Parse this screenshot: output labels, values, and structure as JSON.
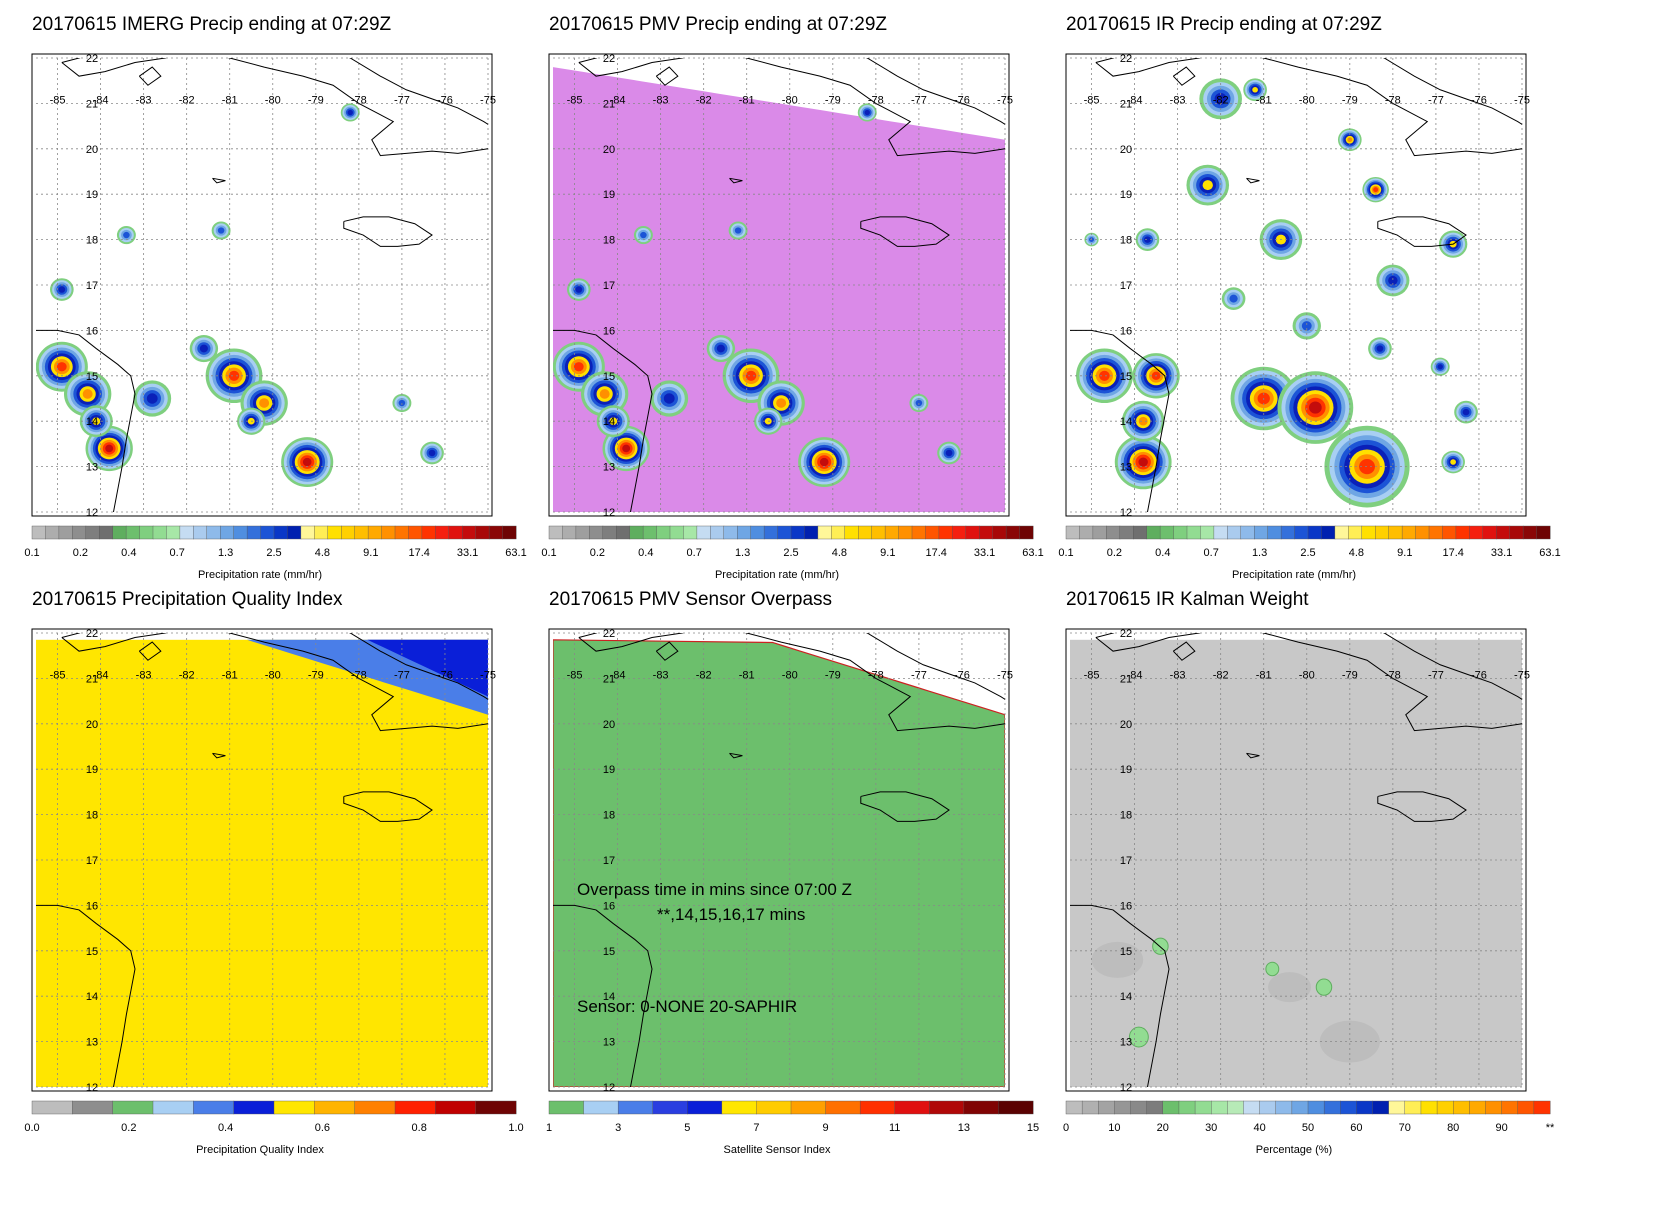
{
  "panels": [
    {
      "id": "imerg",
      "title": "20170615 IMERG Precip ending at 07:29Z",
      "fill": "precip-patches",
      "colorbar": {
        "colors": [
          "#bdbdbd",
          "#adadad",
          "#9e9e9e",
          "#8e8e8e",
          "#7e7e7e",
          "#6f6f6f",
          "#5fae5f",
          "#6dbf6d",
          "#7fcf7f",
          "#92dc92",
          "#a7e7a7",
          "#c5dcf2",
          "#aacbee",
          "#8ebaea",
          "#6fa6e4",
          "#4f8ee0",
          "#3470db",
          "#1c54d6",
          "#0a37c7",
          "#0020b0",
          "#fff799",
          "#ffee55",
          "#ffe000",
          "#ffd000",
          "#ffbe00",
          "#ffa900",
          "#ff9000",
          "#ff7400",
          "#ff5500",
          "#ff3300",
          "#f51f0f",
          "#e0120f",
          "#c40c0c",
          "#a80808",
          "#8a0606",
          "#6e0404"
        ],
        "labels": [
          "0.1",
          "0.2",
          "0.4",
          "0.7",
          "1.3",
          "2.5",
          "4.8",
          "9.1",
          "17.4",
          "33.1",
          "63.1"
        ],
        "title": "Precipitation rate (mm/hr)"
      }
    },
    {
      "id": "pmv",
      "title": "20170615 PMV Precip ending at 07:29Z",
      "fill": "pmv-purple",
      "colorbar": {
        "colors": [
          "#bdbdbd",
          "#adadad",
          "#9e9e9e",
          "#8e8e8e",
          "#7e7e7e",
          "#6f6f6f",
          "#5fae5f",
          "#6dbf6d",
          "#7fcf7f",
          "#92dc92",
          "#a7e7a7",
          "#c5dcf2",
          "#aacbee",
          "#8ebaea",
          "#6fa6e4",
          "#4f8ee0",
          "#3470db",
          "#1c54d6",
          "#0a37c7",
          "#0020b0",
          "#fff799",
          "#ffee55",
          "#ffe000",
          "#ffd000",
          "#ffbe00",
          "#ffa900",
          "#ff9000",
          "#ff7400",
          "#ff5500",
          "#ff3300",
          "#f51f0f",
          "#e0120f",
          "#c40c0c",
          "#a80808",
          "#8a0606",
          "#6e0404"
        ],
        "labels": [
          "0.1",
          "0.2",
          "0.4",
          "0.7",
          "1.3",
          "2.5",
          "4.8",
          "9.1",
          "17.4",
          "33.1",
          "63.1"
        ],
        "title": "Precipitation rate (mm/hr)"
      }
    },
    {
      "id": "ir",
      "title": "20170615 IR Precip ending at 07:29Z",
      "fill": "ir-blobs",
      "colorbar": {
        "colors": [
          "#bdbdbd",
          "#adadad",
          "#9e9e9e",
          "#8e8e8e",
          "#7e7e7e",
          "#6f6f6f",
          "#5fae5f",
          "#6dbf6d",
          "#7fcf7f",
          "#92dc92",
          "#a7e7a7",
          "#c5dcf2",
          "#aacbee",
          "#8ebaea",
          "#6fa6e4",
          "#4f8ee0",
          "#3470db",
          "#1c54d6",
          "#0a37c7",
          "#0020b0",
          "#fff799",
          "#ffee55",
          "#ffe000",
          "#ffd000",
          "#ffbe00",
          "#ffa900",
          "#ff9000",
          "#ff7400",
          "#ff5500",
          "#ff3300",
          "#f51f0f",
          "#e0120f",
          "#c40c0c",
          "#a80808",
          "#8a0606",
          "#6e0404"
        ],
        "labels": [
          "0.1",
          "0.2",
          "0.4",
          "0.7",
          "1.3",
          "2.5",
          "4.8",
          "9.1",
          "17.4",
          "33.1",
          "63.1"
        ],
        "title": "Precipitation rate (mm/hr)"
      }
    },
    {
      "id": "pqi",
      "title": "20170615 Precipitation Quality Index",
      "fill": "pqi-yellow",
      "colorbar": {
        "colors": [
          "#bdbdbd",
          "#8e8e8e",
          "#6cbf6c",
          "#a8cff3",
          "#4a7ee8",
          "#0a1fd8",
          "#ffe600",
          "#ffb400",
          "#ff8000",
          "#ff2000",
          "#c00000",
          "#6e0404"
        ],
        "labels": [
          "0.0",
          "0.2",
          "0.4",
          "0.6",
          "0.8",
          "1.0"
        ],
        "title": "Precipitation Quality Index"
      }
    },
    {
      "id": "sensor",
      "title": "20170615 PMV Sensor Overpass",
      "fill": "sensor-green",
      "colorbar": {
        "colors": [
          "#6cbf6c",
          "#a8cff3",
          "#4a7ee8",
          "#2a3ee0",
          "#0a1fd8",
          "#ffe600",
          "#ffcc00",
          "#ffa000",
          "#ff7000",
          "#ff3000",
          "#e01010",
          "#b00808",
          "#800404",
          "#5a0202"
        ],
        "labels": [
          "1",
          "3",
          "5",
          "7",
          "9",
          "11",
          "13",
          "15"
        ],
        "title": "Satellite Sensor Index"
      },
      "annotation": {
        "line1": "Overpass time in mins since 07:00 Z",
        "line2": "**,14,15,16,17 mins",
        "line3": "Sensor:   0-NONE 20-SAPHIR"
      }
    },
    {
      "id": "kalman",
      "title": "20170615 IR Kalman Weight",
      "fill": "kalman-grey",
      "colorbar": {
        "colors": [
          "#bdbdbd",
          "#b0b0b0",
          "#a3a3a3",
          "#969696",
          "#898989",
          "#7c7c7c",
          "#6cbf6c",
          "#7fcf7f",
          "#92dc92",
          "#a7e7a7",
          "#b7eab7",
          "#c5dcf2",
          "#aacbee",
          "#8ebaea",
          "#6fa6e4",
          "#4f8ee0",
          "#3470db",
          "#1c54d6",
          "#0a37c7",
          "#0020b0",
          "#fff799",
          "#ffee55",
          "#ffe000",
          "#ffd000",
          "#ffbe00",
          "#ffa900",
          "#ff9000",
          "#ff7400",
          "#ff5500",
          "#ff3300"
        ],
        "labels": [
          "0",
          "10",
          "20",
          "30",
          "40",
          "50",
          "60",
          "70",
          "80",
          "90",
          "**"
        ],
        "title": "Percentage (%)"
      }
    }
  ],
  "lon_labels": [
    "-85",
    "-84",
    "-83",
    "-82",
    "-81",
    "-80",
    "-79",
    "-78",
    "-77",
    "-76",
    "-75"
  ],
  "lat_labels": [
    "22",
    "21",
    "20",
    "19",
    "18",
    "17",
    "16",
    "15",
    "14",
    "13",
    "12"
  ]
}
